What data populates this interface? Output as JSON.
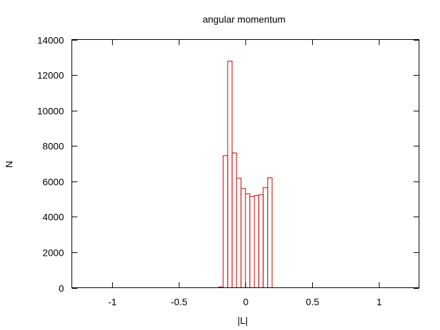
{
  "chart_data": {
    "type": "bar",
    "title": "angular momentum",
    "xlabel": "|L|",
    "ylabel": "N",
    "xlim": [
      -1.3,
      1.3
    ],
    "ylim": [
      0,
      14000
    ],
    "x_ticks": [
      -1,
      -0.5,
      0,
      0.5,
      1
    ],
    "x_tick_labels": [
      "-1",
      "-0.5",
      "0",
      "0.5",
      "1"
    ],
    "y_ticks": [
      0,
      2000,
      4000,
      6000,
      8000,
      10000,
      12000,
      14000
    ],
    "y_tick_labels": [
      "0",
      "2000",
      "4000",
      "6000",
      "8000",
      "10000",
      "12000",
      "14000"
    ],
    "grid": false,
    "bin_width": 0.0333,
    "bins": [
      {
        "x0": -0.2,
        "x1": -0.167,
        "y": 50
      },
      {
        "x0": -0.167,
        "x1": -0.133,
        "y": 7450
      },
      {
        "x0": -0.133,
        "x1": -0.1,
        "y": 12780
      },
      {
        "x0": -0.1,
        "x1": -0.067,
        "y": 7600
      },
      {
        "x0": -0.067,
        "x1": -0.033,
        "y": 6180
      },
      {
        "x0": -0.033,
        "x1": 0.0,
        "y": 5600
      },
      {
        "x0": 0.0,
        "x1": 0.033,
        "y": 5300
      },
      {
        "x0": 0.033,
        "x1": 0.067,
        "y": 5150
      },
      {
        "x0": 0.067,
        "x1": 0.1,
        "y": 5200
      },
      {
        "x0": 0.1,
        "x1": 0.133,
        "y": 5250
      },
      {
        "x0": 0.133,
        "x1": 0.167,
        "y": 5650
      },
      {
        "x0": 0.167,
        "x1": 0.2,
        "y": 6200
      }
    ],
    "colors": {
      "bars": "#cc0000",
      "axes": "#000000"
    }
  }
}
